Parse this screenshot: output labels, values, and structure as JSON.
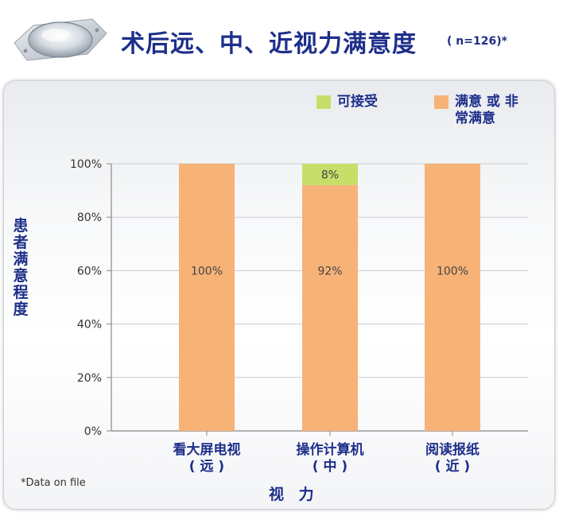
{
  "header": {
    "title": "术后远、中、近视力满意度",
    "subtitle": "( n=126)*",
    "icon": "lens-icon"
  },
  "footnote": "*Data on file",
  "colors": {
    "satisfied": "#f7b277",
    "acceptable": "#c7de6a",
    "title": "#1e2f8a"
  },
  "chart_data": {
    "type": "bar",
    "stacked": true,
    "title": "",
    "xlabel": "视 力",
    "ylabel": "患者满意程度",
    "ylim": [
      0,
      100
    ],
    "yticks": [
      "0%",
      "20%",
      "40%",
      "60%",
      "80%",
      "100%"
    ],
    "categories": [
      {
        "line1": "看大屏电视",
        "line2": "( 远 )"
      },
      {
        "line1": "操作计算机",
        "line2": "( 中 )"
      },
      {
        "line1": "阅读报纸",
        "line2": "( 近 )"
      }
    ],
    "series": [
      {
        "name": "满意 或 非常满意",
        "values": [
          100,
          92,
          100
        ],
        "labels": [
          "100%",
          "92%",
          "100%"
        ]
      },
      {
        "name": "可接受",
        "values": [
          0,
          8,
          0
        ],
        "labels": [
          "",
          "8%",
          ""
        ]
      }
    ],
    "legend_position": "top-right",
    "grid": true
  }
}
